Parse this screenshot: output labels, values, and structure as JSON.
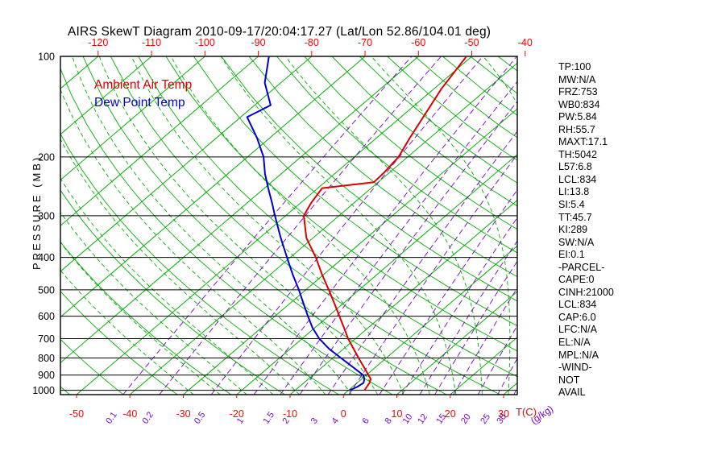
{
  "title": "AIRS SkewT Diagram 2010-09-17/20:04:17.27 (Lat/Lon 52.86/104.01 deg)",
  "legend": {
    "temp_label": "Ambient Air Temp",
    "dew_label": "Dew Point Temp"
  },
  "axes": {
    "pressure_axis_label": "PRESSURE (MB)",
    "pressure_ticks_mb": [
      100,
      200,
      300,
      400,
      500,
      600,
      700,
      800,
      900,
      1000
    ],
    "top_temperature_ticks_c": [
      -120,
      -110,
      -100,
      -90,
      -80,
      -70,
      -60,
      -50,
      -40
    ],
    "bottom_temperature_ticks_c": [
      -50,
      -40,
      -30,
      -20,
      -10,
      0,
      10,
      20,
      30
    ],
    "temperature_unit_label": "T(C)",
    "mixing_ratio_tick_labels": [
      "0.1",
      "0.2",
      "0.5",
      "1",
      "1.5",
      "2",
      "3",
      "4",
      "6",
      "8",
      "10",
      "12",
      "15",
      "20",
      "25",
      "30"
    ],
    "mixing_ratio_unit_label": "(g/kg)"
  },
  "stats_panel": [
    "TP:100",
    "MW:N/A",
    "FRZ:753",
    "WB0:834",
    "PW:5.84",
    "RH:55.7",
    "MAXT:17.1",
    "TH:5042",
    "L57:6.8",
    "LCL:834",
    "LI:13.8",
    "SI:5.4",
    "TT:45.7",
    "KI:289",
    "SW:N/A",
    "EI:0.1",
    "-PARCEL-",
    "CAPE:0",
    "CINH:21000",
    "LCL:834",
    "CAP:6.0",
    "LFC:N/A",
    "EL:N/A",
    "MPL:N/A",
    "-WIND-",
    "NOT",
    "AVAIL"
  ],
  "colors": {
    "isotherm_green": "#00b000",
    "mixing_purple": "#7700cc",
    "temperature_red": "#dd0000",
    "dewpoint_blue": "#0000cd",
    "axis_label_red": "#ff0000",
    "frame_black": "#000000"
  },
  "chart_data": {
    "type": "line",
    "title": "AIRS SkewT Diagram 2010-09-17/20:04:17.27 (Lat/Lon 52.86/104.01 deg)",
    "x_axis": {
      "label": "T(C)",
      "top_row_ticks_c": [
        -120,
        -110,
        -100,
        -90,
        -80,
        -70,
        -60,
        -50,
        -40
      ],
      "bottom_row_ticks_c": [
        -50,
        -40,
        -30,
        -20,
        -10,
        0,
        10,
        20,
        30
      ],
      "skew": "isotherms skewed up-right (skew-T projection)"
    },
    "y_axis": {
      "label": "PRESSURE (MB)",
      "scale": "log",
      "range_mb": [
        100,
        1030
      ],
      "ticks_mb": [
        100,
        200,
        300,
        400,
        500,
        600,
        700,
        800,
        900,
        1000
      ]
    },
    "legend_position": "top-left inside plot",
    "grid": "skew-T background: green isotherms, green dry adiabats, green dashed moist adiabats, purple dashed mixing-ratio lines, black isobars",
    "series": [
      {
        "name": "Ambient Air Temp",
        "color": "#dd0000",
        "points_format": "[pressure_mb, temperature_c]",
        "points": [
          [
            100,
            -51
          ],
          [
            125,
            -48.6
          ],
          [
            150,
            -46
          ],
          [
            175,
            -43.8
          ],
          [
            200,
            -41.7
          ],
          [
            222,
            -41
          ],
          [
            238,
            -40.8
          ],
          [
            248,
            -49.2
          ],
          [
            275,
            -48
          ],
          [
            300,
            -46.6
          ],
          [
            350,
            -41.2
          ],
          [
            400,
            -35.2
          ],
          [
            450,
            -30.3
          ],
          [
            500,
            -25.7
          ],
          [
            550,
            -21.6
          ],
          [
            600,
            -17.9
          ],
          [
            650,
            -14.5
          ],
          [
            700,
            -11.4
          ],
          [
            750,
            -8.2
          ],
          [
            800,
            -5.2
          ],
          [
            850,
            -2.3
          ],
          [
            900,
            0.4
          ],
          [
            925,
            1.7
          ],
          [
            950,
            2.3
          ],
          [
            1000,
            3
          ]
        ]
      },
      {
        "name": "Dew Point Temp",
        "color": "#0000cd",
        "points_format": "[pressure_mb, temperature_c]",
        "points": [
          [
            100,
            -88
          ],
          [
            120,
            -83
          ],
          [
            140,
            -77
          ],
          [
            152,
            -78.8
          ],
          [
            175,
            -72.5
          ],
          [
            200,
            -67
          ],
          [
            225,
            -63
          ],
          [
            250,
            -59
          ],
          [
            275,
            -55.3
          ],
          [
            300,
            -52
          ],
          [
            350,
            -46
          ],
          [
            400,
            -40.6
          ],
          [
            450,
            -35.8
          ],
          [
            500,
            -31.3
          ],
          [
            550,
            -27.4
          ],
          [
            600,
            -23.8
          ],
          [
            650,
            -20.4
          ],
          [
            700,
            -16.8
          ],
          [
            750,
            -12.8
          ],
          [
            800,
            -8.5
          ],
          [
            850,
            -4.4
          ],
          [
            900,
            -0.6
          ],
          [
            925,
            0.5
          ],
          [
            950,
            1.2
          ],
          [
            975,
            0.9
          ],
          [
            1000,
            0.2
          ]
        ]
      }
    ],
    "background_lines": {
      "isotherms_c": {
        "from": -160,
        "to": 40,
        "step": 10
      },
      "dry_adiabats_k": {
        "from": 220,
        "to": 450,
        "step": 10
      },
      "moist_adiabats_surface_c": {
        "from": -30,
        "to": 40,
        "step": 5
      },
      "mixing_ratio_g_kg": [
        0.1,
        0.2,
        0.5,
        1,
        1.5,
        2,
        3,
        4,
        6,
        8,
        10,
        12,
        15,
        20,
        25,
        30
      ]
    }
  }
}
